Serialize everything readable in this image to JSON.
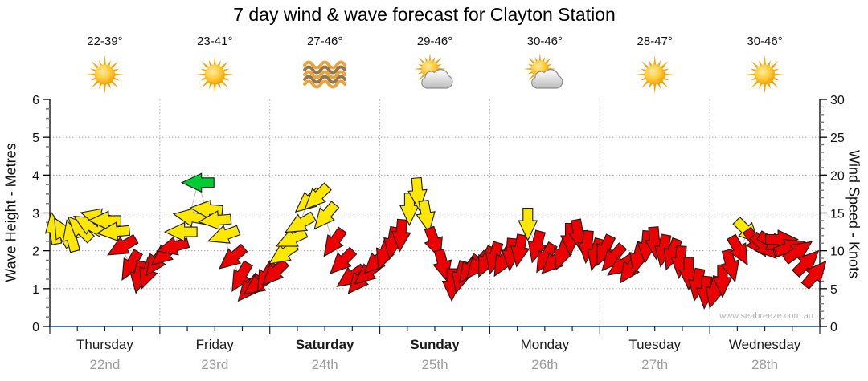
{
  "watermark": "www.seabreeze.com.au",
  "colors": {
    "arrow": {
      "y": "#FFE800",
      "r": "#EC0000",
      "g": "#00CC33"
    },
    "axis_line": "#000000",
    "baseline": "#2F6390",
    "grid": "#A8A8A8",
    "trend_line": "#BBBBBB",
    "day_date": "#9C9C9C",
    "watermark": "#B5B5B5",
    "arrow_outline": "#1A1A1A"
  },
  "chart_data": {
    "type": "scatter",
    "marker": "wind-direction-arrow",
    "title": "7 day wind & wave forecast for Clayton Station",
    "grid": true,
    "legend": "none",
    "wave_axis": {
      "label": "Wave Height - Metres",
      "min": 0,
      "max": 6,
      "ticks": [
        0,
        1,
        2,
        3,
        4,
        5,
        6
      ],
      "minor_step": 0.25
    },
    "wind_axis": {
      "label": "Wind Speed - Knots",
      "min": 0,
      "max": 30,
      "ticks": [
        0,
        5,
        10,
        15,
        20,
        25,
        30
      ],
      "minor_step": 1
    },
    "days": [
      {
        "name": "Thursday",
        "date": "22nd",
        "temp": "22-39°",
        "icon": "sunny",
        "bold": false
      },
      {
        "name": "Friday",
        "date": "23rd",
        "temp": "23-41°",
        "icon": "sunny",
        "bold": false
      },
      {
        "name": "Saturday",
        "date": "24th",
        "temp": "27-46°",
        "icon": "waves",
        "bold": true
      },
      {
        "name": "Sunday",
        "date": "25th",
        "temp": "29-46°",
        "icon": "partly-cloudy",
        "bold": true
      },
      {
        "name": "Monday",
        "date": "26th",
        "temp": "30-46°",
        "icon": "partly-cloudy",
        "bold": false
      },
      {
        "name": "Tuesday",
        "date": "27th",
        "temp": "28-47°",
        "icon": "sunny",
        "bold": false
      },
      {
        "name": "Wednesday",
        "date": "28th",
        "temp": "30-46°",
        "icon": "sunny",
        "bold": false
      }
    ],
    "arrow_format": [
      "day_index",
      "fraction_of_day",
      "wind_speed_knots",
      "arrow_direction_deg_cw_from_up",
      "color_code"
    ],
    "color_codes": {
      "y": "moderate wind (yellow)",
      "r": "light wind (red)",
      "g": "fresh wind (green)"
    },
    "arrows": [
      [
        0,
        0.038,
        13,
        350,
        "y"
      ],
      [
        0,
        0.115,
        12.5,
        330,
        "y"
      ],
      [
        0,
        0.192,
        12,
        345,
        "y"
      ],
      [
        0,
        0.269,
        13,
        315,
        "y"
      ],
      [
        0,
        0.346,
        13.5,
        300,
        "y"
      ],
      [
        0,
        0.423,
        14.5,
        285,
        "y"
      ],
      [
        0,
        0.5,
        14,
        270,
        "y"
      ],
      [
        0,
        0.577,
        12.5,
        265,
        "y"
      ],
      [
        0,
        0.654,
        10.5,
        240,
        "r"
      ],
      [
        0,
        0.731,
        8,
        210,
        "r"
      ],
      [
        0,
        0.808,
        6.5,
        190,
        "r"
      ],
      [
        0,
        0.885,
        7,
        200,
        "r"
      ],
      [
        0,
        0.962,
        8.5,
        215,
        "r"
      ],
      [
        1,
        0.038,
        9.5,
        230,
        "r"
      ],
      [
        1,
        0.115,
        10.5,
        255,
        "r"
      ],
      [
        1,
        0.192,
        12.5,
        270,
        "y"
      ],
      [
        1,
        0.269,
        14.5,
        280,
        "y"
      ],
      [
        1,
        0.346,
        19,
        270,
        "g"
      ],
      [
        1,
        0.423,
        15.5,
        275,
        "y"
      ],
      [
        1,
        0.5,
        14,
        265,
        "y"
      ],
      [
        1,
        0.577,
        12,
        250,
        "y"
      ],
      [
        1,
        0.654,
        9,
        230,
        "r"
      ],
      [
        1,
        0.731,
        6.5,
        210,
        "r"
      ],
      [
        1,
        0.808,
        5,
        220,
        "r"
      ],
      [
        1,
        0.885,
        5.5,
        235,
        "r"
      ],
      [
        1,
        0.962,
        6.5,
        210,
        "r"
      ],
      [
        2,
        0.038,
        7,
        225,
        "r"
      ],
      [
        2,
        0.115,
        9.5,
        235,
        "y"
      ],
      [
        2,
        0.192,
        11.5,
        245,
        "y"
      ],
      [
        2,
        0.269,
        13.5,
        240,
        "y"
      ],
      [
        2,
        0.346,
        16.5,
        230,
        "y"
      ],
      [
        2,
        0.423,
        17,
        225,
        "y"
      ],
      [
        2,
        0.5,
        14.5,
        220,
        "y"
      ],
      [
        2,
        0.577,
        11,
        215,
        "r"
      ],
      [
        2,
        0.654,
        8.5,
        225,
        "r"
      ],
      [
        2,
        0.731,
        6.5,
        235,
        "r"
      ],
      [
        2,
        0.808,
        6,
        220,
        "r"
      ],
      [
        2,
        0.885,
        7,
        230,
        "r"
      ],
      [
        2,
        0.962,
        8.5,
        225,
        "r"
      ],
      [
        3,
        0.038,
        9.5,
        200,
        "r"
      ],
      [
        3,
        0.115,
        11,
        190,
        "r"
      ],
      [
        3,
        0.192,
        12,
        185,
        "r"
      ],
      [
        3,
        0.269,
        15.5,
        180,
        "y"
      ],
      [
        3,
        0.346,
        17.5,
        175,
        "y"
      ],
      [
        3,
        0.423,
        14.5,
        170,
        "y"
      ],
      [
        3,
        0.5,
        11,
        160,
        "r"
      ],
      [
        3,
        0.577,
        8,
        165,
        "r"
      ],
      [
        3,
        0.654,
        5.5,
        180,
        "r"
      ],
      [
        3,
        0.731,
        6.5,
        195,
        "r"
      ],
      [
        3,
        0.808,
        7.5,
        215,
        "r"
      ],
      [
        3,
        0.885,
        8,
        220,
        "r"
      ],
      [
        3,
        0.962,
        8.5,
        205,
        "r"
      ],
      [
        4,
        0.038,
        9,
        195,
        "r"
      ],
      [
        4,
        0.115,
        8.5,
        210,
        "r"
      ],
      [
        4,
        0.192,
        9.5,
        185,
        "r"
      ],
      [
        4,
        0.269,
        10,
        190,
        "r"
      ],
      [
        4,
        0.346,
        13.5,
        180,
        "y"
      ],
      [
        4,
        0.423,
        10.5,
        195,
        "r"
      ],
      [
        4,
        0.5,
        9,
        210,
        "r"
      ],
      [
        4,
        0.577,
        8.5,
        225,
        "r"
      ],
      [
        4,
        0.654,
        9.5,
        200,
        "r"
      ],
      [
        4,
        0.731,
        11.5,
        180,
        "r"
      ],
      [
        4,
        0.808,
        12,
        170,
        "r"
      ],
      [
        4,
        0.885,
        10.5,
        185,
        "r"
      ],
      [
        4,
        0.962,
        9.5,
        195,
        "r"
      ],
      [
        5,
        0.038,
        10,
        205,
        "r"
      ],
      [
        5,
        0.115,
        9,
        220,
        "r"
      ],
      [
        5,
        0.192,
        8,
        235,
        "r"
      ],
      [
        5,
        0.269,
        7.5,
        215,
        "r"
      ],
      [
        5,
        0.346,
        9,
        195,
        "r"
      ],
      [
        5,
        0.423,
        10.5,
        185,
        "r"
      ],
      [
        5,
        0.5,
        11,
        175,
        "r"
      ],
      [
        5,
        0.577,
        10,
        190,
        "r"
      ],
      [
        5,
        0.654,
        9.5,
        200,
        "r"
      ],
      [
        5,
        0.731,
        8.5,
        185,
        "r"
      ],
      [
        5,
        0.808,
        7,
        180,
        "r"
      ],
      [
        5,
        0.885,
        5.5,
        190,
        "r"
      ],
      [
        5,
        0.962,
        4.5,
        185,
        "r"
      ],
      [
        6,
        0.038,
        4.5,
        195,
        "r"
      ],
      [
        6,
        0.115,
        6,
        180,
        "r"
      ],
      [
        6,
        0.192,
        8,
        165,
        "r"
      ],
      [
        6,
        0.269,
        10,
        150,
        "r"
      ],
      [
        6,
        0.346,
        12.5,
        135,
        "y"
      ],
      [
        6,
        0.423,
        11,
        145,
        "r"
      ],
      [
        6,
        0.5,
        10.5,
        135,
        "r"
      ],
      [
        6,
        0.577,
        11,
        120,
        "r"
      ],
      [
        6,
        0.654,
        11.5,
        90,
        "r"
      ],
      [
        6,
        0.731,
        10.5,
        70,
        "r"
      ],
      [
        6,
        0.808,
        10,
        55,
        "r"
      ],
      [
        6,
        0.885,
        8.5,
        45,
        "r"
      ],
      [
        6,
        0.962,
        7,
        40,
        "r"
      ]
    ]
  }
}
